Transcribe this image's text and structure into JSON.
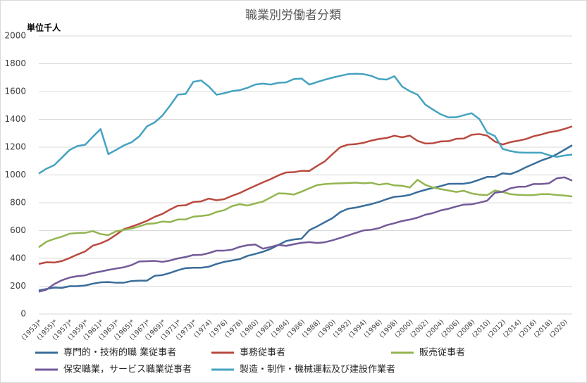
{
  "chart_data": {
    "type": "line",
    "title": "職業別労働者分類",
    "y_unit": "単位千人",
    "categories": [
      "(1953)*",
      null,
      "(1955)*",
      null,
      "(1957)*",
      null,
      "(1959)*",
      null,
      "(1961)*",
      null,
      "(1963)*",
      null,
      "(1965)*",
      null,
      "(1967)*",
      null,
      "(1969)*",
      null,
      "(1971)*",
      null,
      "(1973)*",
      null,
      "(1974)",
      null,
      "(1976)",
      null,
      "(1978)",
      null,
      "(1980)",
      null,
      "(1982)",
      null,
      "(1984)",
      null,
      "(1986)",
      null,
      "(1988)",
      null,
      "(1990)",
      null,
      "(1992)",
      null,
      "(1994)",
      null,
      "(1996)",
      null,
      "(1998)",
      null,
      "(2000)",
      null,
      "(2002)",
      null,
      "(2004)",
      null,
      "(2006)",
      null,
      "(2008)",
      null,
      "(2010)",
      null,
      "(2012)",
      null,
      "(2014)",
      null,
      "(2016)",
      null,
      "(2018)",
      null,
      "(2020)",
      null
    ],
    "ylim": [
      0,
      2000
    ],
    "yticks": [
      0,
      200,
      400,
      600,
      800,
      1000,
      1200,
      1400,
      1600,
      1800,
      2000
    ],
    "grid": true,
    "series": [
      {
        "name": "専門的・技術的職 業従事者",
        "color": "#3a6d9a",
        "values": [
          170,
          180,
          190,
          188,
          200,
          200,
          205,
          218,
          228,
          230,
          225,
          225,
          237,
          240,
          240,
          275,
          280,
          296,
          315,
          330,
          333,
          333,
          340,
          360,
          375,
          385,
          395,
          418,
          432,
          448,
          468,
          497,
          525,
          536,
          542,
          603,
          630,
          660,
          690,
          733,
          757,
          765,
          778,
          790,
          806,
          826,
          843,
          847,
          857,
          877,
          893,
          907,
          920,
          936,
          937,
          937,
          947,
          966,
          986,
          987,
          1012,
          1006,
          1027,
          1055,
          1079,
          1104,
          1123,
          1149,
          1181,
          1214
        ]
      },
      {
        "name": "事務従事者",
        "color": "#b94a3f",
        "values": [
          360,
          372,
          370,
          381,
          403,
          428,
          450,
          492,
          508,
          533,
          570,
          610,
          628,
          648,
          670,
          699,
          720,
          752,
          779,
          782,
          806,
          810,
          830,
          818,
          826,
          850,
          870,
          897,
          922,
          947,
          970,
          997,
          1018,
          1020,
          1030,
          1029,
          1065,
          1098,
          1150,
          1200,
          1218,
          1222,
          1231,
          1247,
          1259,
          1266,
          1282,
          1271,
          1283,
          1245,
          1226,
          1228,
          1241,
          1243,
          1260,
          1262,
          1289,
          1294,
          1283,
          1240,
          1219,
          1236,
          1246,
          1258,
          1278,
          1291,
          1307,
          1316,
          1331,
          1350
        ]
      },
      {
        "name": "販売従事者",
        "color": "#93b550",
        "values": [
          480,
          520,
          540,
          556,
          578,
          582,
          584,
          596,
          575,
          567,
          595,
          605,
          615,
          630,
          648,
          652,
          665,
          661,
          680,
          680,
          700,
          705,
          712,
          734,
          747,
          776,
          790,
          780,
          795,
          809,
          838,
          868,
          866,
          859,
          880,
          904,
          927,
          934,
          938,
          940,
          942,
          945,
          940,
          944,
          930,
          938,
          925,
          922,
          910,
          965,
          929,
          910,
          898,
          888,
          878,
          886,
          867,
          858,
          855,
          888,
          878,
          862,
          857,
          855,
          855,
          862,
          862,
          856,
          852,
          845
        ]
      },
      {
        "name": "保安職業，サービス職業従事者",
        "color": "#735a9a",
        "values": [
          160,
          175,
          215,
          243,
          262,
          272,
          278,
          295,
          305,
          317,
          327,
          336,
          352,
          378,
          380,
          382,
          375,
          385,
          400,
          410,
          424,
          425,
          438,
          456,
          456,
          463,
          483,
          495,
          500,
          470,
          482,
          497,
          490,
          502,
          512,
          517,
          511,
          516,
          530,
          547,
          565,
          583,
          601,
          606,
          617,
          639,
          653,
          669,
          679,
          693,
          714,
          726,
          745,
          757,
          773,
          787,
          789,
          801,
          815,
          872,
          879,
          904,
          915,
          916,
          935,
          935,
          940,
          976,
          983,
          959
        ]
      },
      {
        "name": "製造・制作・機械運転及び建設作業者",
        "color": "#45a3c0",
        "values": [
          1010,
          1045,
          1070,
          1125,
          1180,
          1208,
          1217,
          1275,
          1330,
          1150,
          1180,
          1212,
          1235,
          1277,
          1350,
          1378,
          1427,
          1500,
          1578,
          1583,
          1670,
          1680,
          1636,
          1577,
          1588,
          1603,
          1610,
          1627,
          1650,
          1657,
          1650,
          1663,
          1666,
          1690,
          1693,
          1650,
          1668,
          1685,
          1700,
          1713,
          1725,
          1728,
          1725,
          1713,
          1690,
          1686,
          1710,
          1636,
          1602,
          1577,
          1506,
          1470,
          1436,
          1414,
          1415,
          1430,
          1444,
          1401,
          1305,
          1280,
          1188,
          1172,
          1162,
          1160,
          1160,
          1160,
          1142,
          1130,
          1140,
          1146
        ]
      }
    ]
  }
}
